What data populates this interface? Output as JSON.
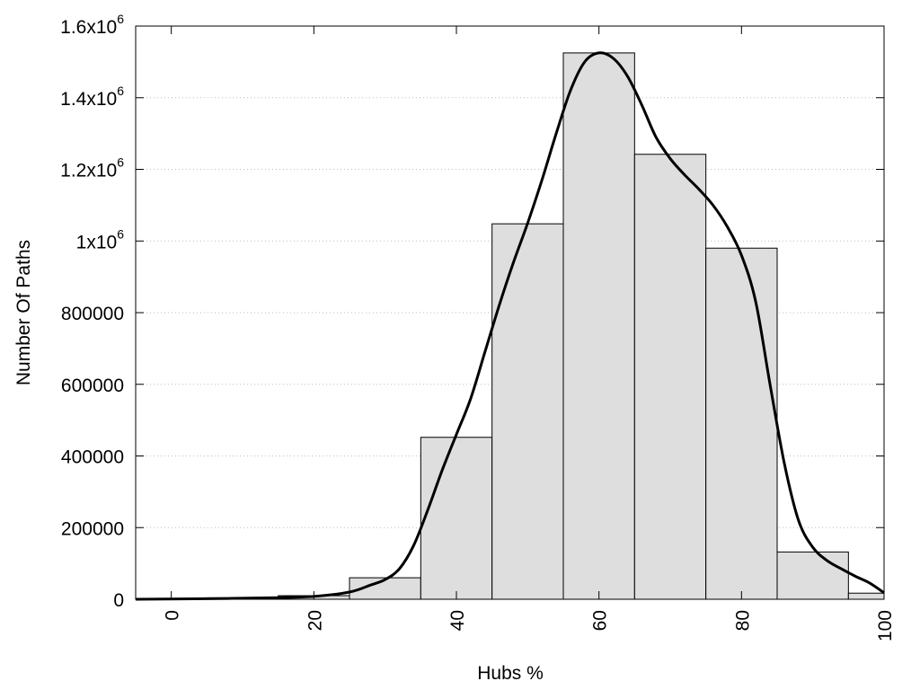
{
  "chart_data": {
    "type": "bar",
    "xlabel": "Hubs %",
    "ylabel": "Number Of Paths",
    "xlim": [
      -5,
      100
    ],
    "ylim": [
      0,
      1600000
    ],
    "grid": true,
    "bar_color": "#dedede",
    "x_ticks": [
      {
        "value": 0,
        "label": "0"
      },
      {
        "value": 20,
        "label": "20"
      },
      {
        "value": 40,
        "label": "40"
      },
      {
        "value": 60,
        "label": "60"
      },
      {
        "value": 80,
        "label": "80"
      },
      {
        "value": 100,
        "label": "100"
      }
    ],
    "y_ticks": [
      {
        "value": 0,
        "label": "0",
        "sup": ""
      },
      {
        "value": 200000,
        "label": "200000",
        "sup": ""
      },
      {
        "value": 400000,
        "label": "400000",
        "sup": ""
      },
      {
        "value": 600000,
        "label": "600000",
        "sup": ""
      },
      {
        "value": 800000,
        "label": "800000",
        "sup": ""
      },
      {
        "value": 1000000,
        "label": "1x10",
        "sup": "6"
      },
      {
        "value": 1200000,
        "label": "1.2x10",
        "sup": "6"
      },
      {
        "value": 1400000,
        "label": "1.4x10",
        "sup": "6"
      },
      {
        "value": 1600000,
        "label": "1.6x10",
        "sup": "6"
      }
    ],
    "bars": [
      {
        "x0": -5,
        "x1": 5,
        "value": 1500
      },
      {
        "x0": 5,
        "x1": 15,
        "value": 4000
      },
      {
        "x0": 15,
        "x1": 25,
        "value": 10000
      },
      {
        "x0": 25,
        "x1": 35,
        "value": 60000
      },
      {
        "x0": 35,
        "x1": 45,
        "value": 452000
      },
      {
        "x0": 45,
        "x1": 55,
        "value": 1048000
      },
      {
        "x0": 55,
        "x1": 65,
        "value": 1525000
      },
      {
        "x0": 65,
        "x1": 75,
        "value": 1242000
      },
      {
        "x0": 75,
        "x1": 85,
        "value": 980000
      },
      {
        "x0": 85,
        "x1": 95,
        "value": 132000
      },
      {
        "x0": 95,
        "x1": 100,
        "value": 17000
      }
    ],
    "curve": [
      [
        -5,
        0
      ],
      [
        5,
        1500
      ],
      [
        15,
        4500
      ],
      [
        20,
        8000
      ],
      [
        25,
        20000
      ],
      [
        28,
        40000
      ],
      [
        30,
        55000
      ],
      [
        32,
        85000
      ],
      [
        34,
        150000
      ],
      [
        36,
        250000
      ],
      [
        38,
        360000
      ],
      [
        40,
        460000
      ],
      [
        42,
        560000
      ],
      [
        44,
        690000
      ],
      [
        46,
        820000
      ],
      [
        48,
        940000
      ],
      [
        50,
        1050000
      ],
      [
        52,
        1170000
      ],
      [
        54,
        1300000
      ],
      [
        56,
        1420000
      ],
      [
        58,
        1500000
      ],
      [
        60,
        1525000
      ],
      [
        62,
        1510000
      ],
      [
        64,
        1460000
      ],
      [
        66,
        1380000
      ],
      [
        68,
        1290000
      ],
      [
        70,
        1230000
      ],
      [
        72,
        1185000
      ],
      [
        74,
        1145000
      ],
      [
        76,
        1100000
      ],
      [
        78,
        1040000
      ],
      [
        80,
        960000
      ],
      [
        82,
        830000
      ],
      [
        84,
        600000
      ],
      [
        86,
        380000
      ],
      [
        88,
        220000
      ],
      [
        90,
        145000
      ],
      [
        92,
        108000
      ],
      [
        94,
        85000
      ],
      [
        96,
        64000
      ],
      [
        98,
        45000
      ],
      [
        100,
        18000
      ]
    ]
  }
}
